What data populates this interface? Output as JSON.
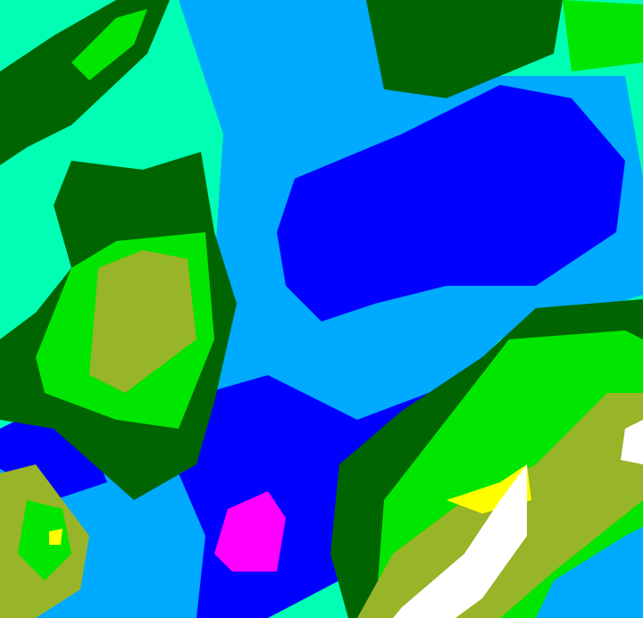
{
  "map": {
    "type": "classified-raster",
    "palette": {
      "aquamarine": "#00ffb4",
      "light_blue": "#00aaff",
      "blue": "#0000ff",
      "magenta": "#ff00ff",
      "dark_green": "#006400",
      "bright_green": "#00e600",
      "olive": "#98b428",
      "white": "#ffffff",
      "yellow": "#ffff00"
    }
  }
}
